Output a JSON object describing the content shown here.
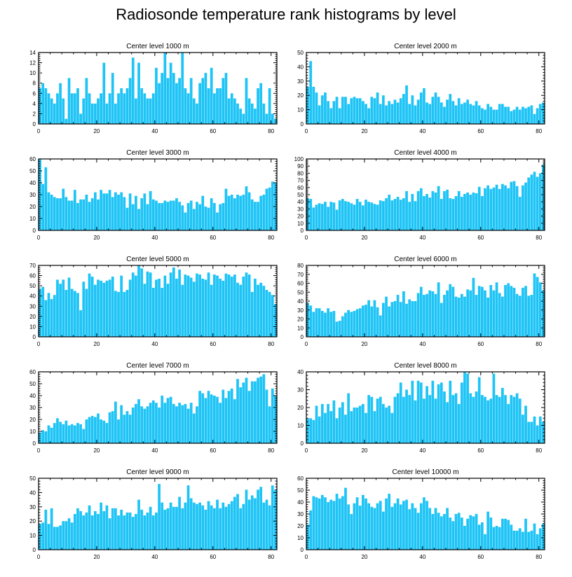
{
  "figure": {
    "title": "Radiosonde temperature rank histograms by level",
    "bar_color": "#1ec4f6",
    "axis_color": "#000000"
  },
  "chart_data": [
    {
      "type": "bar",
      "title": "Center level 1000 m",
      "xlim": [
        0,
        82
      ],
      "ylim": [
        0,
        14
      ],
      "xticks": [
        0,
        20,
        40,
        60,
        80
      ],
      "yticks": [
        0,
        2,
        4,
        6,
        8,
        10,
        12,
        14
      ],
      "values": [
        7,
        8,
        7,
        6,
        5,
        4,
        6,
        8,
        5,
        1,
        9,
        6,
        6,
        7,
        2,
        5,
        9,
        6,
        4,
        4,
        5,
        6,
        12,
        4,
        6,
        10,
        4,
        6,
        7,
        6,
        7,
        9,
        13,
        5,
        12,
        7,
        6,
        5,
        5,
        6,
        11,
        8,
        10,
        14,
        9,
        12,
        10,
        8,
        9,
        14,
        7,
        6,
        9,
        5,
        4,
        8,
        9,
        10,
        7,
        11,
        6,
        7,
        7,
        9,
        10,
        5,
        6,
        5,
        4,
        3,
        2,
        9,
        5,
        4,
        3,
        7,
        8,
        4,
        2,
        7,
        2,
        1
      ]
    },
    {
      "type": "bar",
      "title": "Center level 2000 m",
      "xlim": [
        0,
        82
      ],
      "ylim": [
        0,
        50
      ],
      "xticks": [
        0,
        20,
        40,
        60,
        80
      ],
      "yticks": [
        0,
        10,
        20,
        30,
        40,
        50
      ],
      "values": [
        26,
        44,
        26,
        22,
        13,
        20,
        22,
        16,
        11,
        16,
        19,
        11,
        19,
        19,
        14,
        18,
        19,
        18,
        18,
        16,
        14,
        11,
        19,
        18,
        22,
        14,
        20,
        13,
        16,
        14,
        17,
        15,
        18,
        21,
        27,
        14,
        20,
        13,
        17,
        22,
        25,
        15,
        14,
        19,
        22,
        19,
        15,
        12,
        17,
        21,
        16,
        13,
        18,
        14,
        15,
        17,
        14,
        13,
        16,
        13,
        11,
        10,
        14,
        12,
        10,
        10,
        14,
        14,
        12,
        12,
        9,
        10,
        12,
        10,
        12,
        11,
        12,
        13,
        7,
        11,
        14,
        15
      ]
    },
    {
      "type": "bar",
      "title": "Center level 3000 m",
      "xlim": [
        0,
        82
      ],
      "ylim": [
        0,
        60
      ],
      "xticks": [
        0,
        20,
        40,
        60,
        80
      ],
      "yticks": [
        0,
        10,
        20,
        30,
        40,
        50,
        60
      ],
      "values": [
        60,
        39,
        53,
        32,
        30,
        28,
        27,
        27,
        35,
        28,
        25,
        25,
        34,
        23,
        26,
        26,
        30,
        24,
        27,
        32,
        26,
        34,
        31,
        31,
        34,
        28,
        32,
        30,
        32,
        28,
        19,
        31,
        22,
        29,
        18,
        27,
        31,
        22,
        33,
        26,
        25,
        23,
        23,
        25,
        24,
        25,
        25,
        27,
        24,
        21,
        15,
        23,
        25,
        18,
        24,
        22,
        29,
        20,
        19,
        27,
        23,
        15,
        22,
        23,
        35,
        29,
        30,
        27,
        30,
        29,
        30,
        37,
        32,
        26,
        24,
        24,
        29,
        30,
        35,
        36,
        41,
        40
      ]
    },
    {
      "type": "bar",
      "title": "Center level 4000 m",
      "xlim": [
        0,
        82
      ],
      "ylim": [
        0,
        100
      ],
      "xticks": [
        0,
        20,
        40,
        60,
        80
      ],
      "yticks": [
        0,
        10,
        20,
        30,
        40,
        50,
        60,
        70,
        80,
        90,
        100
      ],
      "values": [
        45,
        44,
        32,
        36,
        38,
        37,
        40,
        33,
        40,
        39,
        29,
        42,
        44,
        41,
        40,
        38,
        36,
        44,
        40,
        35,
        43,
        40,
        39,
        37,
        36,
        42,
        41,
        45,
        50,
        42,
        44,
        47,
        43,
        45,
        55,
        40,
        51,
        41,
        55,
        59,
        48,
        51,
        46,
        55,
        53,
        62,
        44,
        55,
        57,
        45,
        44,
        48,
        55,
        47,
        51,
        53,
        50,
        53,
        52,
        61,
        48,
        59,
        63,
        58,
        60,
        64,
        58,
        65,
        63,
        59,
        68,
        69,
        62,
        47,
        63,
        67,
        74,
        78,
        82,
        75,
        80,
        92
      ]
    },
    {
      "type": "bar",
      "title": "Center level 5000 m",
      "xlim": [
        0,
        82
      ],
      "ylim": [
        0,
        70
      ],
      "xticks": [
        0,
        20,
        40,
        60,
        80
      ],
      "yticks": [
        0,
        10,
        20,
        30,
        40,
        50,
        60,
        70
      ],
      "values": [
        47,
        49,
        36,
        43,
        37,
        41,
        56,
        52,
        56,
        46,
        58,
        47,
        45,
        43,
        26,
        54,
        47,
        62,
        59,
        51,
        56,
        55,
        53,
        55,
        56,
        59,
        45,
        44,
        60,
        44,
        46,
        56,
        63,
        60,
        70,
        67,
        52,
        64,
        63,
        48,
        56,
        57,
        48,
        60,
        52,
        63,
        68,
        57,
        66,
        51,
        61,
        60,
        58,
        54,
        62,
        61,
        57,
        56,
        63,
        51,
        61,
        60,
        57,
        55,
        62,
        61,
        59,
        61,
        53,
        51,
        59,
        63,
        61,
        44,
        57,
        51,
        53,
        50,
        46,
        44,
        41,
        32
      ]
    },
    {
      "type": "bar",
      "title": "Center level 6000 m",
      "xlim": [
        0,
        82
      ],
      "ylim": [
        0,
        80
      ],
      "xticks": [
        0,
        20,
        40,
        60,
        80
      ],
      "yticks": [
        0,
        10,
        20,
        30,
        40,
        50,
        60,
        70,
        80
      ],
      "values": [
        38,
        35,
        28,
        32,
        32,
        29,
        27,
        32,
        28,
        29,
        17,
        18,
        23,
        27,
        30,
        28,
        29,
        31,
        32,
        35,
        36,
        41,
        34,
        41,
        33,
        24,
        38,
        45,
        34,
        39,
        40,
        47,
        39,
        51,
        37,
        42,
        40,
        40,
        49,
        56,
        47,
        48,
        52,
        51,
        48,
        61,
        38,
        47,
        52,
        59,
        56,
        45,
        44,
        48,
        45,
        53,
        52,
        66,
        47,
        57,
        56,
        52,
        44,
        58,
        52,
        61,
        49,
        45,
        58,
        60,
        57,
        55,
        48,
        46,
        55,
        57,
        46,
        47,
        71,
        67,
        61,
        52
      ]
    },
    {
      "type": "bar",
      "title": "Center level 7000 m",
      "xlim": [
        0,
        82
      ],
      "ylim": [
        0,
        60
      ],
      "xticks": [
        0,
        20,
        40,
        60,
        80
      ],
      "yticks": [
        0,
        10,
        20,
        30,
        40,
        50,
        60
      ],
      "values": [
        9,
        11,
        10,
        15,
        13,
        17,
        21,
        18,
        16,
        19,
        15,
        16,
        15,
        17,
        16,
        12,
        20,
        22,
        23,
        22,
        25,
        20,
        19,
        17,
        26,
        27,
        35,
        20,
        32,
        24,
        27,
        24,
        30,
        33,
        37,
        31,
        29,
        31,
        34,
        36,
        34,
        30,
        40,
        34,
        38,
        39,
        33,
        31,
        34,
        32,
        33,
        29,
        34,
        25,
        31,
        44,
        42,
        38,
        44,
        41,
        40,
        39,
        34,
        45,
        38,
        44,
        46,
        37,
        54,
        47,
        51,
        55,
        44,
        52,
        52,
        55,
        56,
        58,
        45,
        31,
        46,
        40
      ]
    },
    {
      "type": "bar",
      "title": "Center level 8000 m",
      "xlim": [
        0,
        82
      ],
      "ylim": [
        0,
        40
      ],
      "xticks": [
        0,
        20,
        40,
        60,
        80
      ],
      "yticks": [
        0,
        10,
        20,
        30,
        40
      ],
      "values": [
        14,
        14,
        13,
        21,
        15,
        22,
        17,
        22,
        18,
        24,
        14,
        20,
        23,
        16,
        28,
        18,
        20,
        20,
        21,
        22,
        17,
        27,
        26,
        18,
        25,
        26,
        22,
        20,
        21,
        17,
        26,
        28,
        34,
        26,
        30,
        27,
        35,
        24,
        35,
        34,
        25,
        32,
        27,
        35,
        25,
        33,
        34,
        29,
        23,
        35,
        27,
        28,
        22,
        34,
        40,
        39,
        28,
        26,
        29,
        37,
        27,
        26,
        24,
        25,
        39,
        27,
        26,
        31,
        27,
        22,
        27,
        26,
        28,
        25,
        16,
        21,
        12,
        12,
        15,
        10,
        15,
        12
      ]
    },
    {
      "type": "bar",
      "title": "Center level 9000 m",
      "xlim": [
        0,
        82
      ],
      "ylim": [
        0,
        50
      ],
      "xticks": [
        0,
        20,
        40,
        60,
        80
      ],
      "yticks": [
        0,
        10,
        20,
        30,
        40,
        50
      ],
      "values": [
        18,
        19,
        28,
        18,
        29,
        16,
        16,
        17,
        20,
        20,
        22,
        19,
        25,
        29,
        27,
        24,
        26,
        31,
        24,
        27,
        25,
        33,
        27,
        31,
        22,
        29,
        29,
        24,
        28,
        24,
        26,
        26,
        23,
        25,
        35,
        28,
        24,
        26,
        30,
        24,
        26,
        46,
        33,
        28,
        29,
        33,
        30,
        30,
        37,
        29,
        33,
        45,
        36,
        33,
        32,
        33,
        31,
        28,
        34,
        31,
        29,
        35,
        29,
        33,
        30,
        32,
        34,
        37,
        39,
        29,
        32,
        42,
        35,
        38,
        36,
        42,
        44,
        33,
        35,
        31,
        45,
        42
      ]
    },
    {
      "type": "bar",
      "title": "Center level 10000 m",
      "xlim": [
        0,
        82
      ],
      "ylim": [
        0,
        60
      ],
      "xticks": [
        0,
        20,
        40,
        60,
        80
      ],
      "yticks": [
        0,
        10,
        20,
        30,
        40,
        50,
        60
      ],
      "values": [
        21,
        33,
        45,
        44,
        43,
        46,
        44,
        40,
        42,
        41,
        47,
        43,
        45,
        52,
        38,
        30,
        39,
        44,
        37,
        46,
        43,
        39,
        36,
        35,
        39,
        41,
        32,
        43,
        47,
        36,
        39,
        43,
        38,
        41,
        42,
        34,
        39,
        35,
        31,
        39,
        44,
        41,
        35,
        30,
        35,
        31,
        28,
        30,
        35,
        27,
        24,
        30,
        31,
        27,
        20,
        26,
        29,
        28,
        30,
        21,
        23,
        13,
        32,
        27,
        19,
        20,
        19,
        26,
        26,
        25,
        21,
        16,
        16,
        18,
        15,
        26,
        15,
        16,
        22,
        13,
        18,
        22
      ]
    }
  ]
}
